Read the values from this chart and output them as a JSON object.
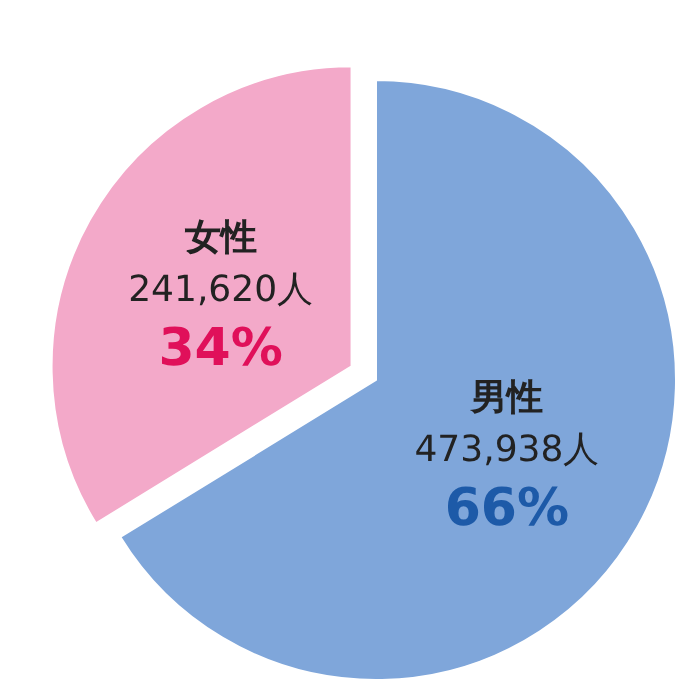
{
  "chart_data": {
    "type": "pie",
    "categories": [
      "男性",
      "女性"
    ],
    "values": [
      473938,
      241620
    ],
    "colors": [
      "#7fa6da",
      "#f3a9c9"
    ],
    "value_labels": [
      "473,938人",
      "241,620人"
    ],
    "annotations": [
      "66%",
      "34%"
    ]
  }
}
